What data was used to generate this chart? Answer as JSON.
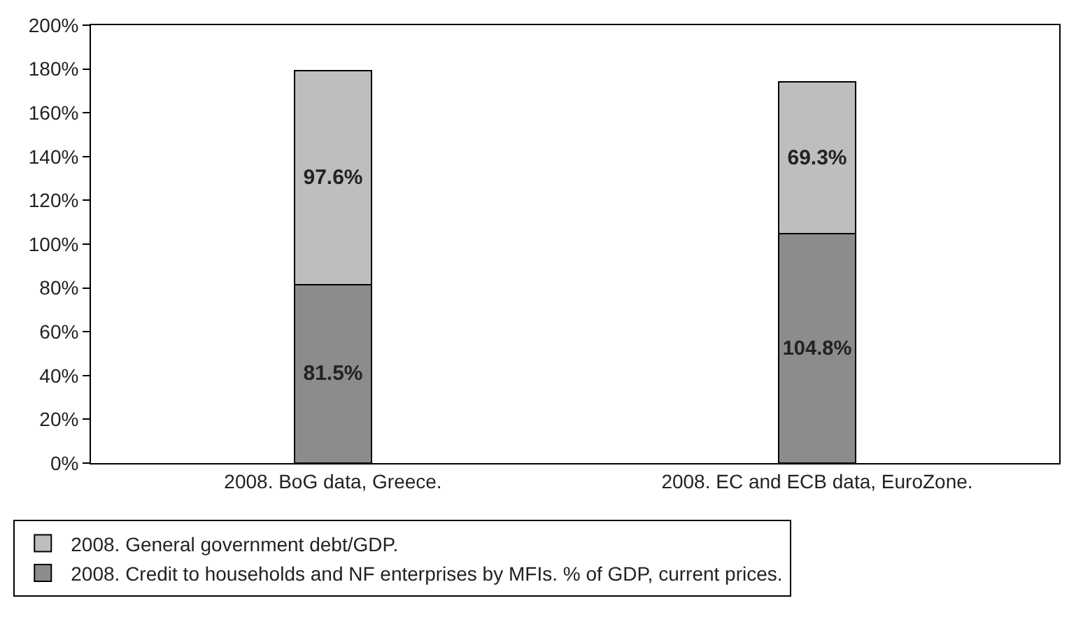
{
  "chart_data": {
    "type": "bar",
    "stacked": true,
    "categories": [
      "2008. BoG data, Greece.",
      "2008. EC and ECB data, EuroZone."
    ],
    "series": [
      {
        "name": "2008. Credit to households and NF enterprises by MFIs. % of GDP, current prices.",
        "color": "#8c8c8c",
        "values": [
          81.5,
          104.8
        ],
        "value_labels": [
          "81.5%",
          "104.8%"
        ]
      },
      {
        "name": "2008. General government debt/GDP.",
        "color": "#bebebe",
        "values": [
          97.6,
          69.3
        ],
        "value_labels": [
          "97.6%",
          "69.3%"
        ]
      }
    ],
    "ylim": [
      0,
      200
    ],
    "yticks": [
      {
        "value": 0,
        "label": "0%"
      },
      {
        "value": 20,
        "label": "20%"
      },
      {
        "value": 40,
        "label": "40%"
      },
      {
        "value": 60,
        "label": "60%"
      },
      {
        "value": 80,
        "label": "80%"
      },
      {
        "value": 100,
        "label": "100%"
      },
      {
        "value": 120,
        "label": "120%"
      },
      {
        "value": 140,
        "label": "140%"
      },
      {
        "value": 160,
        "label": "160%"
      },
      {
        "value": 180,
        "label": "180%"
      },
      {
        "value": 200,
        "label": "200%"
      }
    ],
    "legend": "bottom left"
  }
}
